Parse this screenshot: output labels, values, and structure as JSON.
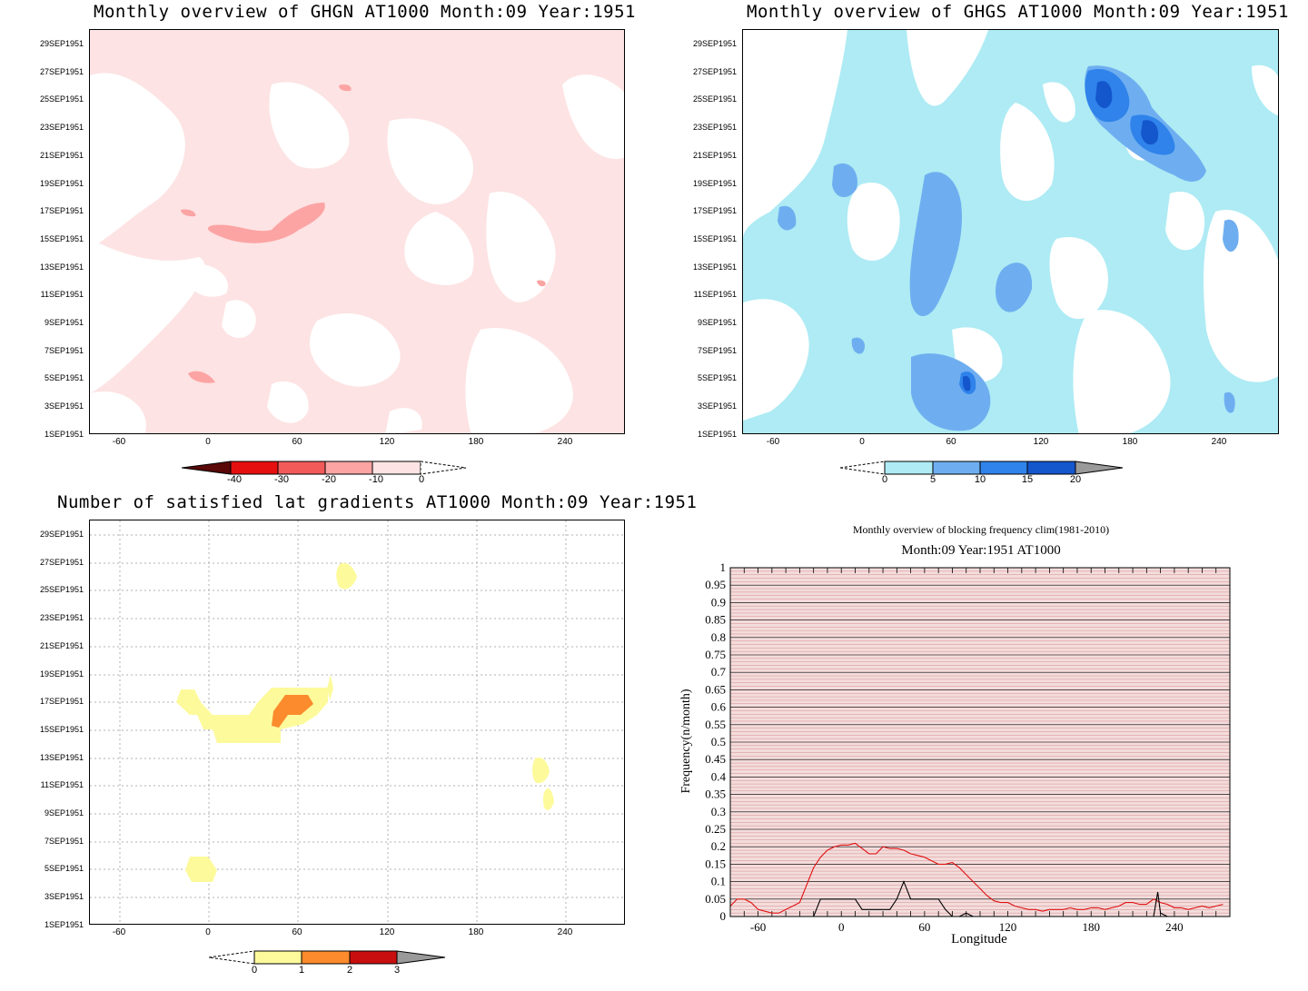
{
  "panels": {
    "ghgn": {
      "title": "Monthly overview of GHGN AT1000 Month:09 Year:1951",
      "colorbar_labels": [
        "-40",
        "-30",
        "-20",
        "-10",
        "0"
      ],
      "colorbar_colors": [
        "#ffffff",
        "#fde3e3",
        "#fca4a4",
        "#f25a5a",
        "#e60f0f",
        "#5a0808"
      ]
    },
    "ghgs": {
      "title": "Monthly overview of GHGS AT1000 Month:09 Year:1951",
      "colorbar_labels": [
        "0",
        "5",
        "10",
        "15",
        "20"
      ],
      "colorbar_colors": [
        "#ffffff",
        "#aeebf4",
        "#6eaef0",
        "#2f83ea",
        "#1456cc",
        "#9a9a9a"
      ]
    },
    "gradients": {
      "title": "Number of satisfied lat gradients AT1000 Month:09 Year:1951",
      "colorbar_labels": [
        "0",
        "1",
        "2",
        "3"
      ],
      "colorbar_colors": [
        "#ffffff",
        "#fdfa9c",
        "#fb8b2c",
        "#c80e0e",
        "#9a9a9a"
      ]
    },
    "blocking": {
      "title": "Monthly overview of blocking frequency clim(1981-2010)",
      "subtitle": "Month:09 Year:1951  AT1000",
      "xlabel": "Longitude",
      "ylabel": "Frequency(n/month)"
    }
  },
  "date_ticks": [
    "29SEP1951",
    "27SEP1951",
    "25SEP1951",
    "23SEP1951",
    "21SEP1951",
    "19SEP1951",
    "17SEP1951",
    "15SEP1951",
    "13SEP1951",
    "11SEP1951",
    "9SEP1951",
    "7SEP1951",
    "5SEP1951",
    "3SEP1951",
    "1SEP1951"
  ],
  "lon_ticks": [
    "-60",
    "0",
    "60",
    "120",
    "180",
    "240"
  ],
  "chart_data": [
    {
      "type": "heatmap",
      "title": "Monthly overview of GHGN AT1000 Month:09 Year:1951",
      "xlabel": "",
      "ylabel": "",
      "x_range": [
        -80,
        280
      ],
      "y_range": [
        "1SEP1951",
        "30SEP1951"
      ],
      "levels": [
        -40,
        -30,
        -20,
        -10,
        0
      ],
      "colors": [
        "#5a0808",
        "#e60f0f",
        "#f25a5a",
        "#fca4a4",
        "#fde3e3",
        "#ffffff"
      ],
      "features": [
        {
          "lon": [
            -10,
            80
          ],
          "date": [
            "15SEP1951",
            "17SEP1951"
          ],
          "level": -10
        },
        {
          "lon": [
            -15,
            5
          ],
          "date": [
            "4SEP1951",
            "5SEP1951"
          ],
          "level": -10
        },
        {
          "lon": [
            90,
            96
          ],
          "date": [
            "26SEP1951",
            "26SEP1951"
          ],
          "level": -10
        },
        {
          "lon": [
            220,
            226
          ],
          "date": [
            "11SEP1951",
            "11SEP1951"
          ],
          "level": -10
        }
      ]
    },
    {
      "type": "heatmap",
      "title": "Monthly overview of GHGS AT1000 Month:09 Year:1951",
      "xlabel": "",
      "ylabel": "",
      "x_range": [
        -80,
        280
      ],
      "y_range": [
        "1SEP1951",
        "30SEP1951"
      ],
      "levels": [
        0,
        5,
        10,
        15,
        20
      ],
      "colors": [
        "#ffffff",
        "#aeebf4",
        "#6eaef0",
        "#2f83ea",
        "#1456cc",
        "#9a9a9a"
      ],
      "features": [
        {
          "lon": [
            150,
            190
          ],
          "date": [
            "24SEP1951",
            "27SEP1951"
          ],
          "level": 20
        },
        {
          "lon": [
            180,
            205
          ],
          "date": [
            "22SEP1951",
            "24SEP1951"
          ],
          "level": 15
        },
        {
          "lon": [
            65,
            75
          ],
          "date": [
            "3SEP1951",
            "4SEP1951"
          ],
          "level": 15
        },
        {
          "lon": [
            30,
            85
          ],
          "date": [
            "8SEP1951",
            "19SEP1951"
          ],
          "level": 10
        }
      ]
    },
    {
      "type": "heatmap",
      "title": "Number of satisfied lat gradients AT1000 Month:09 Year:1951",
      "xlabel": "",
      "ylabel": "",
      "x_range": [
        -80,
        280
      ],
      "y_range": [
        "1SEP1951",
        "30SEP1951"
      ],
      "levels": [
        0,
        1,
        2,
        3
      ],
      "colors": [
        "#ffffff",
        "#fdfa9c",
        "#fb8b2c",
        "#c80e0e"
      ],
      "features": [
        {
          "lon": [
            -20,
            80
          ],
          "date": [
            "15SEP1951",
            "18SEP1951"
          ],
          "level": 1
        },
        {
          "lon": [
            45,
            70
          ],
          "date": [
            "16SEP1951",
            "17SEP1951"
          ],
          "level": 2
        },
        {
          "lon": [
            85,
            100
          ],
          "date": [
            "26SEP1951",
            "27SEP1951"
          ],
          "level": 1
        },
        {
          "lon": [
            215,
            230
          ],
          "date": [
            "10SEP1951",
            "12SEP1951"
          ],
          "level": 1
        },
        {
          "lon": [
            -15,
            5
          ],
          "date": [
            "5SEP1951",
            "5SEP1951"
          ],
          "level": 1
        }
      ]
    },
    {
      "type": "line",
      "title": "Monthly overview of blocking frequency clim(1981-2010)",
      "subtitle": "Month:09 Year:1951  AT1000",
      "xlabel": "Longitude",
      "ylabel": "Frequency(n/month)",
      "xlim": [
        -80,
        280
      ],
      "ylim": [
        0,
        1
      ],
      "x_ticks": [
        -60,
        0,
        60,
        120,
        180,
        240
      ],
      "y_ticks": [
        0,
        0.05,
        0.1,
        0.15,
        0.2,
        0.25,
        0.3,
        0.35,
        0.4,
        0.45,
        0.5,
        0.55,
        0.6,
        0.65,
        0.7,
        0.75,
        0.8,
        0.85,
        0.9,
        0.95,
        1
      ],
      "grid": true,
      "series": [
        {
          "color": "#e01010",
          "x": [
            -80,
            -75,
            -70,
            -65,
            -60,
            -55,
            -50,
            -45,
            -40,
            -35,
            -30,
            -25,
            -20,
            -15,
            -10,
            -5,
            0,
            5,
            10,
            15,
            20,
            25,
            30,
            35,
            40,
            45,
            50,
            55,
            60,
            65,
            70,
            75,
            80,
            85,
            90,
            95,
            100,
            105,
            110,
            115,
            120,
            125,
            130,
            135,
            140,
            145,
            150,
            155,
            160,
            165,
            170,
            175,
            180,
            185,
            190,
            195,
            200,
            205,
            210,
            215,
            220,
            225,
            230,
            235,
            240,
            245,
            250,
            255,
            260,
            265,
            270,
            275
          ],
          "y": [
            0.03,
            0.05,
            0.05,
            0.04,
            0.02,
            0.015,
            0.01,
            0.01,
            0.02,
            0.03,
            0.04,
            0.09,
            0.14,
            0.17,
            0.19,
            0.2,
            0.205,
            0.205,
            0.21,
            0.195,
            0.18,
            0.18,
            0.2,
            0.195,
            0.195,
            0.19,
            0.18,
            0.175,
            0.17,
            0.16,
            0.15,
            0.15,
            0.155,
            0.14,
            0.12,
            0.1,
            0.08,
            0.06,
            0.045,
            0.04,
            0.04,
            0.03,
            0.025,
            0.02,
            0.02,
            0.015,
            0.02,
            0.02,
            0.02,
            0.025,
            0.02,
            0.02,
            0.025,
            0.025,
            0.02,
            0.025,
            0.03,
            0.04,
            0.04,
            0.035,
            0.035,
            0.05,
            0.04,
            0.035,
            0.025,
            0.025,
            0.02,
            0.025,
            0.03,
            0.025,
            0.03,
            0.035
          ]
        },
        {
          "color": "#000000",
          "x": [
            -80,
            -25,
            -20,
            -15,
            -10,
            -5,
            0,
            5,
            10,
            15,
            20,
            25,
            30,
            35,
            40,
            45,
            50,
            55,
            60,
            65,
            70,
            75,
            80,
            85,
            90,
            95,
            100,
            220,
            225,
            228,
            230,
            235,
            280
          ],
          "y": [
            0,
            0,
            0,
            0.05,
            0.05,
            0.05,
            0.05,
            0.05,
            0.05,
            0.02,
            0.02,
            0.02,
            0.02,
            0.02,
            0.05,
            0.1,
            0.05,
            0.05,
            0.05,
            0.05,
            0.05,
            0.02,
            0,
            0,
            0.01,
            0,
            0,
            0,
            0,
            0.07,
            0.01,
            0,
            0
          ]
        }
      ]
    }
  ]
}
